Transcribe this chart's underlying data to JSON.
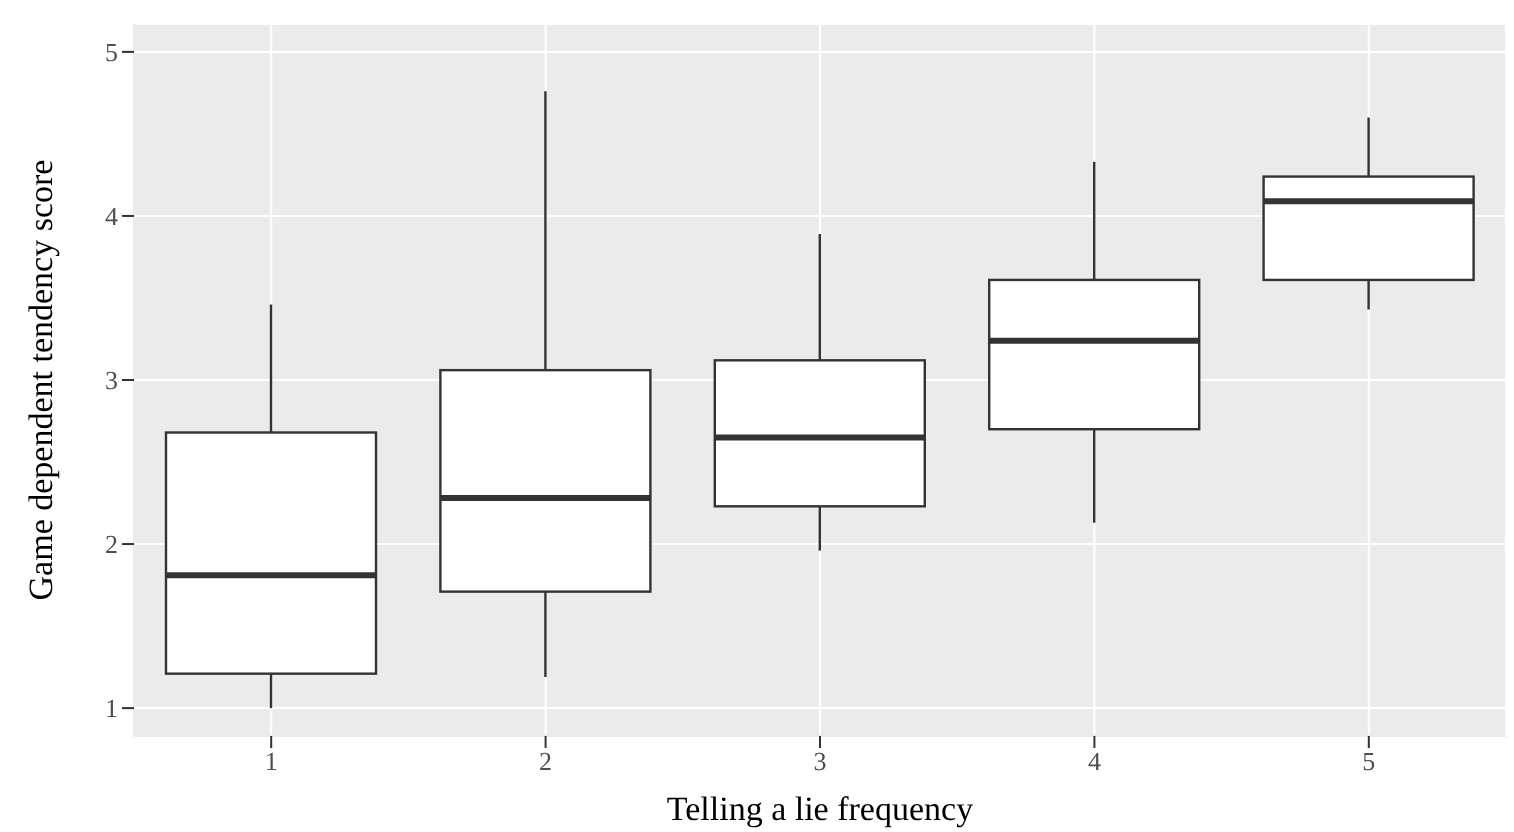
{
  "chart_data": {
    "type": "box",
    "xlabel": "Telling a lie frequency",
    "ylabel": "Game dependent tendency score",
    "categories": [
      "1",
      "2",
      "3",
      "4",
      "5"
    ],
    "boxes": [
      {
        "low": 1.0,
        "q1": 1.21,
        "median": 1.81,
        "q3": 2.68,
        "high": 3.46
      },
      {
        "low": 1.19,
        "q1": 1.71,
        "median": 2.28,
        "q3": 3.06,
        "high": 4.76
      },
      {
        "low": 1.96,
        "q1": 2.23,
        "median": 2.65,
        "q3": 3.12,
        "high": 3.89
      },
      {
        "low": 2.13,
        "q1": 2.7,
        "median": 3.24,
        "q3": 3.61,
        "high": 4.33
      },
      {
        "low": 3.43,
        "q1": 3.61,
        "median": 4.09,
        "q3": 4.24,
        "high": 4.6
      }
    ],
    "color": "#ffffff",
    "ylim": [
      0.83,
      5.17
    ],
    "yticks": [
      1,
      2,
      3,
      4,
      5
    ],
    "grid": true
  }
}
